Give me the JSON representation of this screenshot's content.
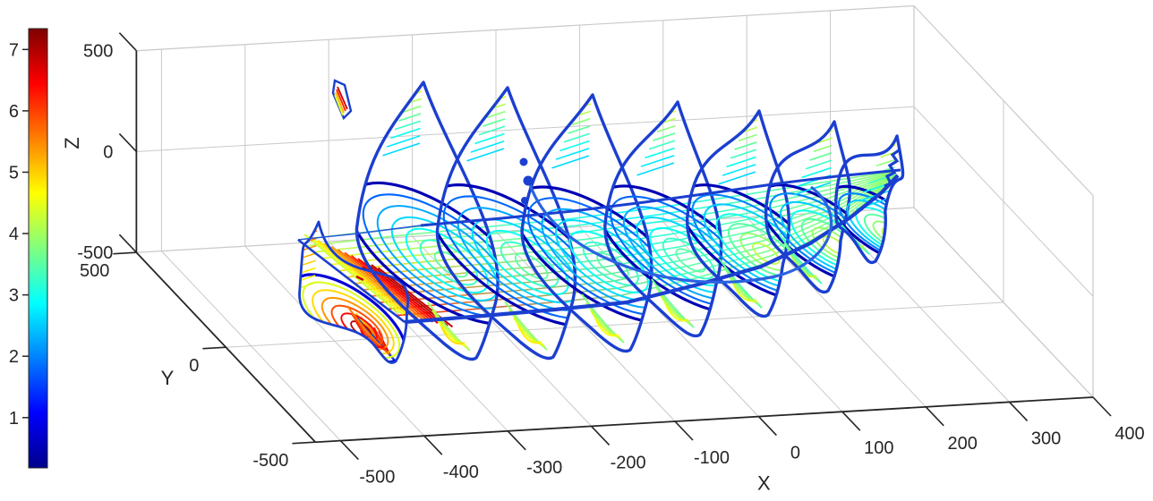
{
  "chart_data": {
    "type": "contourslice",
    "title": "",
    "colormap": "jet",
    "color_axis_range": [
      0.2,
      7.3
    ],
    "colorbar": {
      "position": "left",
      "ticks": [
        7,
        6,
        5,
        4,
        3,
        2,
        1
      ]
    },
    "axes": {
      "x": {
        "label": "X",
        "range": [
          -530,
          400
        ],
        "ticks": [
          -500,
          -400,
          -300,
          -200,
          -100,
          0,
          100,
          200,
          300,
          400
        ]
      },
      "y": {
        "label": "Y",
        "range": [
          -500,
          500
        ],
        "ticks": [
          500,
          0,
          -500
        ]
      },
      "z": {
        "label": "Z",
        "range": [
          -500,
          500
        ],
        "ticks": [
          500,
          0,
          -500
        ]
      }
    },
    "grid": true,
    "view": "default MATLAB 3-D view (az -37.5, el 30)",
    "slices": {
      "x_plane_count": 8,
      "x_plane_positions_approx": [
        -450,
        -350,
        -250,
        -150,
        -50,
        50,
        150,
        250
      ],
      "horizontal_slab": true,
      "value_hotspot": "front-left region, values ~4-7 (yellow-orange-red)",
      "value_rings": "concentric ring contours, values ~0.5-4 (blue-cyan-green)"
    },
    "style": {
      "contour_rim": "#1b3fd0",
      "grid_line": "#c9c9c9",
      "axis_color": "#262626",
      "background": "#ffffff"
    }
  }
}
